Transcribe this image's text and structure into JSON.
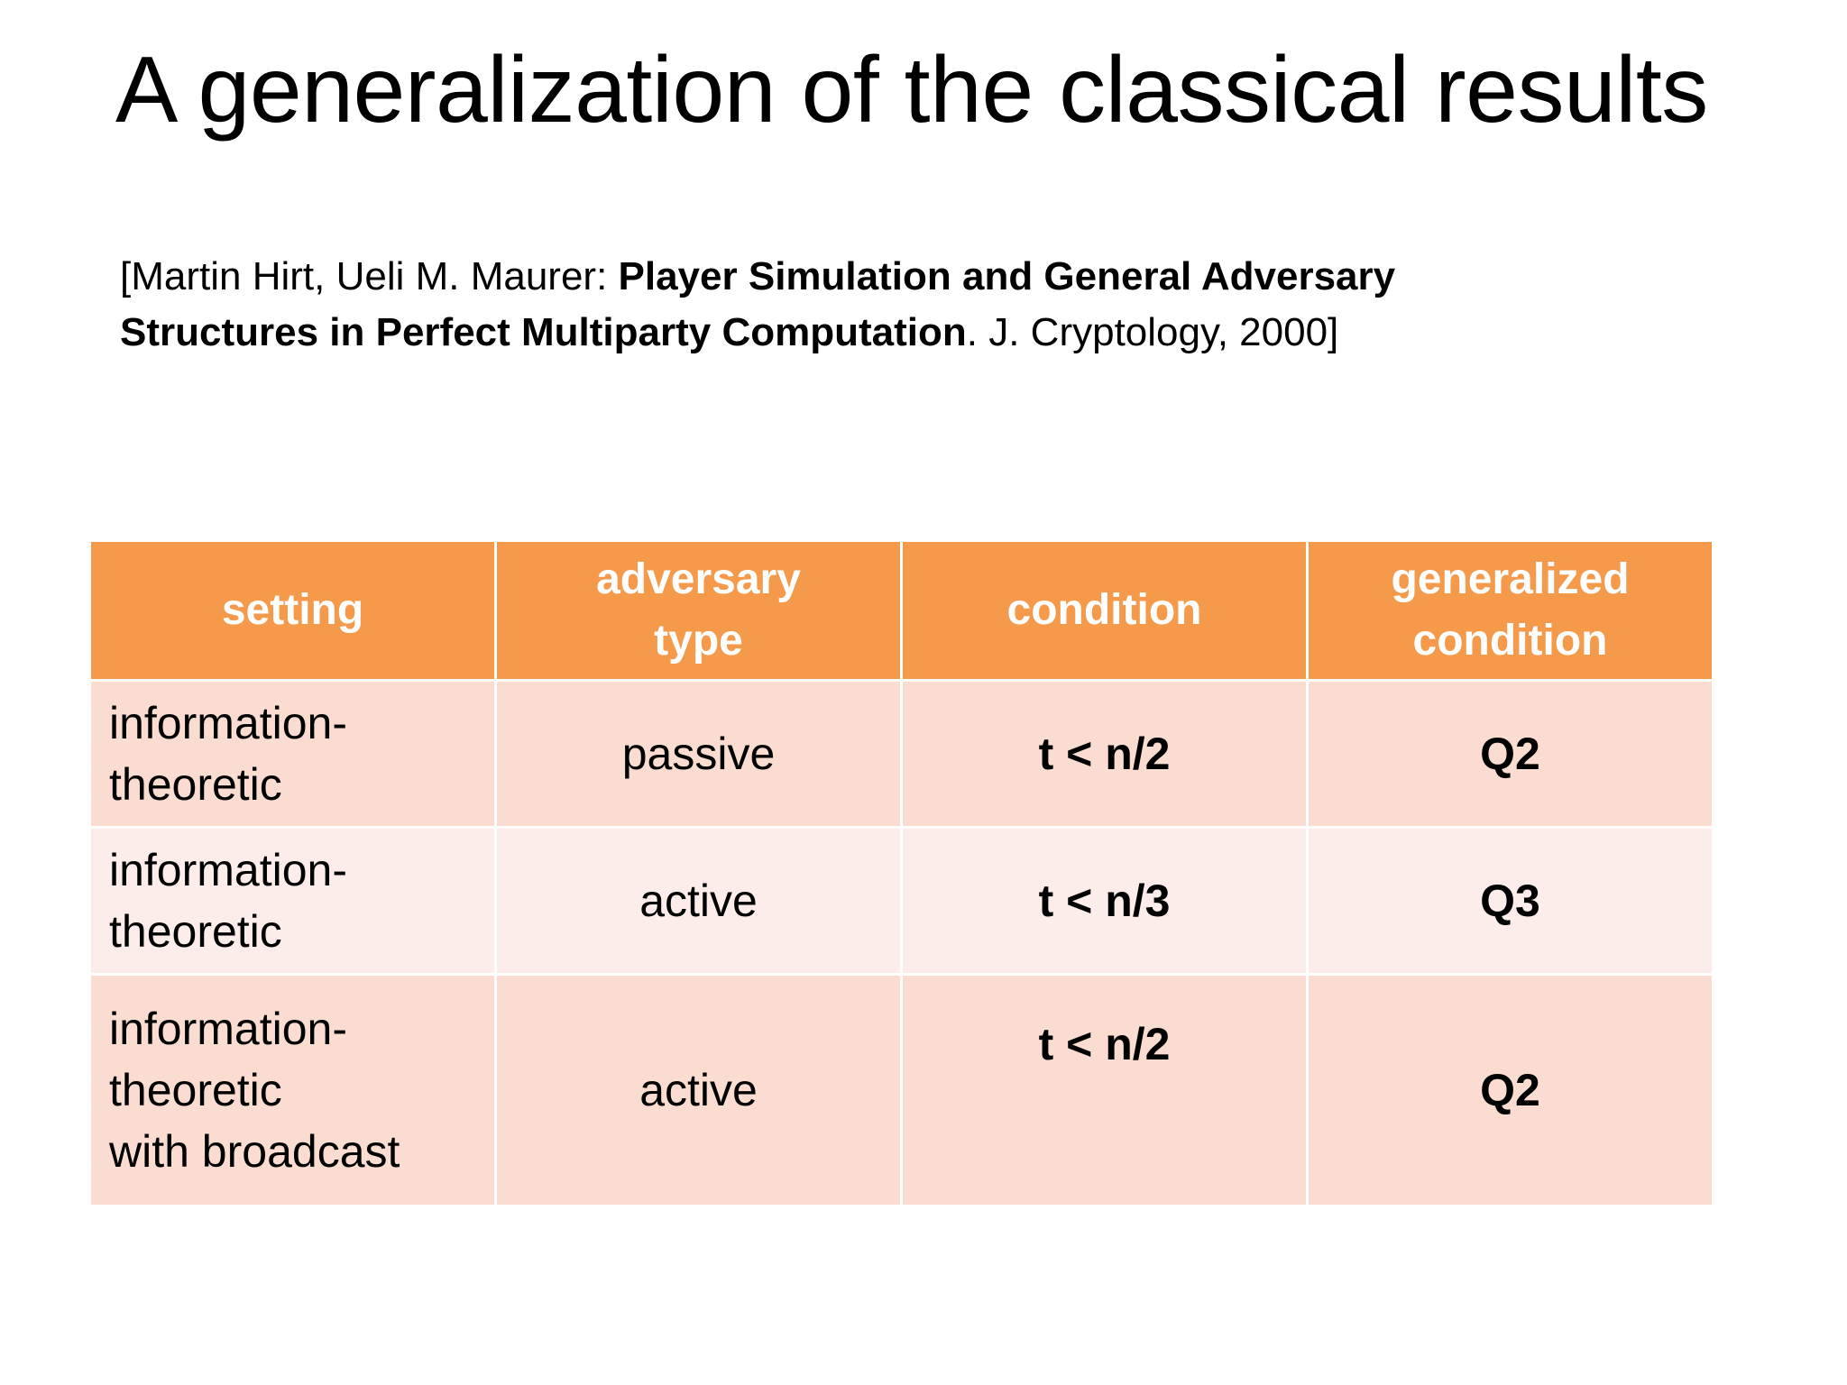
{
  "slide": {
    "title": "A generalization of the classical results",
    "citation": {
      "prefix": "[Martin Hirt, Ueli M. Maurer: ",
      "paper_title": "Player Simulation and General Adversary Structures in Perfect Multiparty Computation",
      "suffix": ". J. Cryptology, 2000]"
    }
  },
  "table": {
    "headers": [
      {
        "lines": [
          "setting"
        ]
      },
      {
        "lines": [
          "adversary",
          "type"
        ]
      },
      {
        "lines": [
          "condition"
        ]
      },
      {
        "lines": [
          "generalized",
          "condition"
        ]
      }
    ],
    "rows": [
      {
        "setting": [
          "information-",
          "theoretic"
        ],
        "adversary_type": "passive",
        "condition": "t < n/2",
        "generalized_condition": "Q2"
      },
      {
        "setting": [
          "information-",
          "theoretic"
        ],
        "adversary_type": "active",
        "condition": "t < n/3",
        "generalized_condition": "Q3"
      },
      {
        "setting": [
          "information-",
          "theoretic",
          "with broadcast"
        ],
        "adversary_type": "active",
        "condition": "t < n/2",
        "generalized_condition": "Q2"
      }
    ],
    "colors": {
      "header_bg": "#f5994b",
      "header_text": "#ffffff",
      "row_dark": "#fbdcd0",
      "row_light": "#fdedea"
    }
  }
}
